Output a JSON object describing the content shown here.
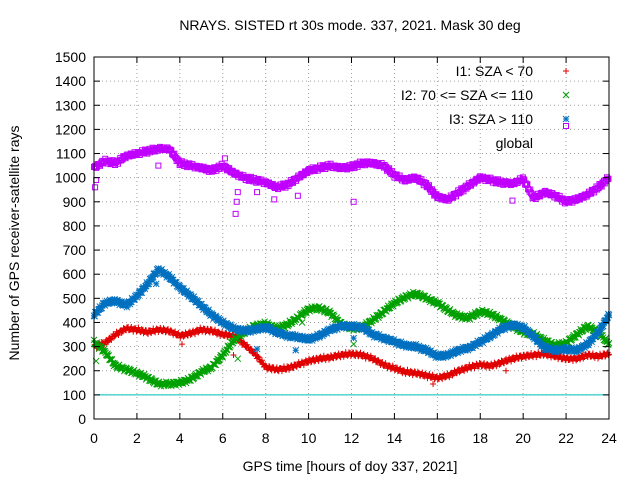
{
  "chart_data": {
    "type": "scatter",
    "title": "NRAYS. SISTED rt 30s mode. 337, 2021. Mask 30 deg",
    "xlabel": "GPS time [hours of doy 337, 2021]",
    "ylabel": "Number of GPS receiver-satellite rays",
    "xlim": [
      0,
      24
    ],
    "ylim": [
      0,
      1500
    ],
    "xticks": [
      "0",
      "2",
      "4",
      "6",
      "8",
      "10",
      "12",
      "14",
      "16",
      "18",
      "20",
      "22",
      "24"
    ],
    "yticks": [
      "0",
      "100",
      "200",
      "300",
      "400",
      "500",
      "600",
      "700",
      "800",
      "900",
      "1000",
      "1100",
      "1200",
      "1300",
      "1400",
      "1500"
    ],
    "grid": true,
    "legend_position": "top-right",
    "reference_line": {
      "y": 100,
      "color": "#00c0c0"
    },
    "series": [
      {
        "name": "I1: SZA < 70",
        "marker": "+",
        "color": "#e00000",
        "x": [
          0,
          0.5,
          1,
          1.5,
          2,
          2.5,
          3,
          3.5,
          4,
          4.5,
          5,
          5.5,
          6,
          6.5,
          7,
          7.5,
          8,
          8.5,
          9,
          9.5,
          10,
          10.5,
          11,
          11.5,
          12,
          12.5,
          13,
          13.5,
          14,
          14.5,
          15,
          15.5,
          16,
          16.5,
          17,
          17.5,
          18,
          18.5,
          19,
          19.5,
          20,
          20.5,
          21,
          21.5,
          22,
          22.5,
          23,
          23.5,
          24
        ],
        "y": [
          300,
          315,
          350,
          375,
          370,
          360,
          370,
          365,
          345,
          355,
          370,
          365,
          350,
          345,
          310,
          270,
          215,
          205,
          210,
          225,
          240,
          250,
          255,
          265,
          270,
          265,
          250,
          225,
          210,
          195,
          190,
          180,
          170,
          180,
          200,
          215,
          225,
          220,
          235,
          250,
          260,
          265,
          270,
          260,
          250,
          250,
          265,
          260,
          270
        ]
      },
      {
        "name": "I2: 70 <= SZA <= 110",
        "marker": "x",
        "color": "#00a000",
        "x": [
          0,
          0.5,
          1,
          1.5,
          2,
          2.5,
          3,
          3.5,
          4,
          4.5,
          5,
          5.5,
          6,
          6.5,
          7,
          7.5,
          8,
          8.5,
          9,
          9.5,
          10,
          10.5,
          11,
          11.5,
          12,
          12.5,
          13,
          13.5,
          14,
          14.5,
          15,
          15.5,
          16,
          16.5,
          17,
          17.5,
          18,
          18.5,
          19,
          19.5,
          20,
          20.5,
          21,
          21.5,
          22,
          22.5,
          23,
          23.5,
          24
        ],
        "y": [
          320,
          280,
          220,
          205,
          190,
          170,
          145,
          145,
          150,
          165,
          195,
          215,
          265,
          325,
          360,
          385,
          395,
          375,
          390,
          420,
          455,
          460,
          440,
          395,
          375,
          380,
          410,
          445,
          480,
          505,
          520,
          500,
          480,
          450,
          425,
          420,
          445,
          435,
          410,
          385,
          360,
          350,
          325,
          305,
          315,
          350,
          385,
          360,
          310
        ]
      },
      {
        "name": "I3: SZA > 110",
        "marker": "*",
        "color": "#0070c0",
        "x": [
          0,
          0.5,
          1,
          1.5,
          2,
          2.5,
          3,
          3.5,
          4,
          4.5,
          5,
          5.5,
          6,
          6.5,
          7,
          7.5,
          8,
          8.5,
          9,
          9.5,
          10,
          10.5,
          11,
          11.5,
          12,
          12.5,
          13,
          13.5,
          14,
          14.5,
          15,
          15.5,
          16,
          16.5,
          17,
          17.5,
          18,
          18.5,
          19,
          19.5,
          20,
          20.5,
          21,
          21.5,
          22,
          22.5,
          23,
          23.5,
          24
        ],
        "y": [
          430,
          480,
          490,
          470,
          510,
          560,
          620,
          590,
          545,
          510,
          470,
          430,
          400,
          375,
          365,
          370,
          380,
          360,
          345,
          340,
          330,
          345,
          370,
          385,
          385,
          380,
          350,
          335,
          320,
          305,
          300,
          285,
          260,
          265,
          285,
          295,
          320,
          345,
          375,
          390,
          380,
          340,
          295,
          285,
          290,
          285,
          310,
          360,
          430
        ]
      },
      {
        "name": "global",
        "marker": "square",
        "color": "#c000ff",
        "x": [
          0,
          0.5,
          1,
          1.5,
          2,
          2.5,
          3,
          3.5,
          4,
          4.5,
          5,
          5.5,
          6,
          6.5,
          7,
          7.5,
          8,
          8.5,
          9,
          9.5,
          10,
          10.5,
          11,
          11.5,
          12,
          12.5,
          13,
          13.5,
          14,
          14.5,
          15,
          15.5,
          16,
          16.5,
          17,
          17.5,
          18,
          18.5,
          19,
          19.5,
          20,
          20.5,
          21,
          21.5,
          22,
          22.5,
          23,
          23.5,
          24
        ],
        "y": [
          1040,
          1070,
          1060,
          1090,
          1100,
          1110,
          1120,
          1120,
          1060,
          1050,
          1040,
          1030,
          1050,
          1020,
          1000,
          990,
          980,
          960,
          970,
          1000,
          1030,
          1040,
          1050,
          1040,
          1045,
          1060,
          1060,
          1050,
          1010,
          990,
          1000,
          970,
          920,
          910,
          940,
          970,
          1000,
          990,
          980,
          975,
          995,
          915,
          940,
          925,
          900,
          910,
          930,
          960,
          1000
        ]
      }
    ],
    "outliers": {
      "global": {
        "x": [
          0.05,
          0.1,
          3,
          6.1,
          6.6,
          6.65,
          6.7,
          7.6,
          8.4,
          9.5,
          12.1,
          19.5
        ],
        "y": [
          960,
          990,
          1050,
          1080,
          850,
          900,
          940,
          940,
          910,
          925,
          900,
          905
        ]
      },
      "I1: SZA < 70": {
        "x": [
          4.1,
          6.5,
          15.8,
          19.2
        ],
        "y": [
          310,
          265,
          145,
          200
        ]
      },
      "I2: 70 <= SZA <= 110": {
        "x": [
          0.1,
          6.7,
          9.7,
          12.1
        ],
        "y": [
          240,
          250,
          400,
          310
        ]
      },
      "I3: SZA > 110": {
        "x": [
          2.9,
          7.6,
          9.4,
          12.1
        ],
        "y": [
          560,
          290,
          285,
          335
        ]
      }
    }
  }
}
